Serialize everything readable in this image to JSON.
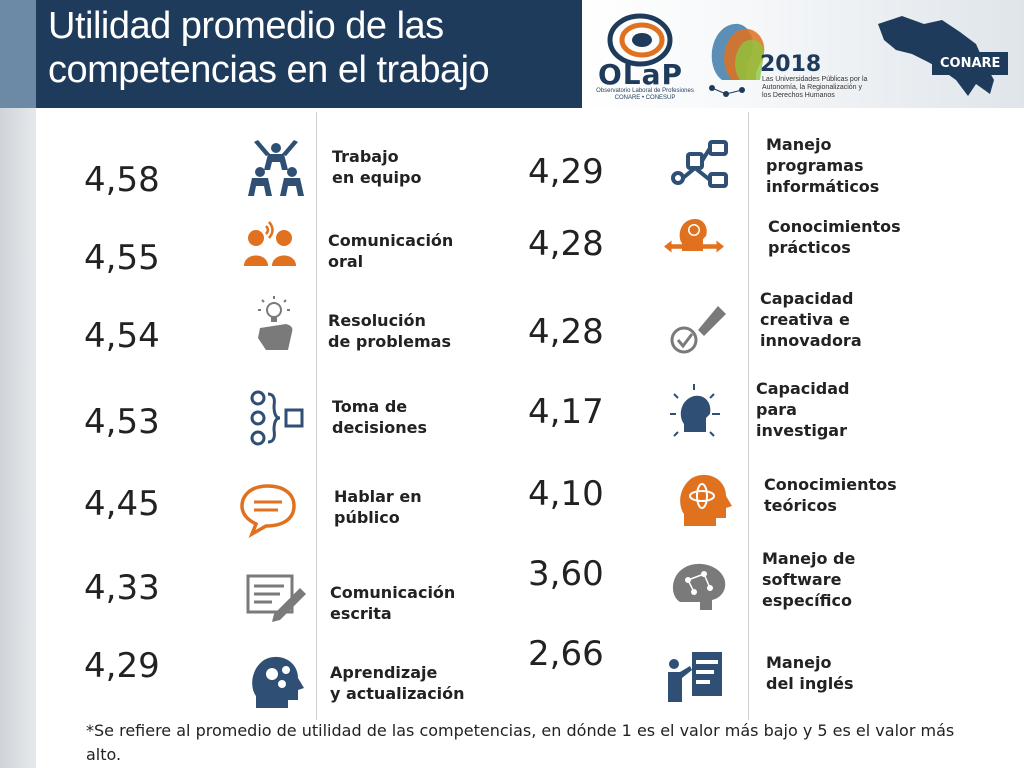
{
  "header": {
    "title_line1": "Utilidad promedio de las",
    "title_line2": "competencias en el trabajo"
  },
  "logos": {
    "olap_word": "OLaP",
    "olap_sub": "Observatorio Laboral de Profesiones",
    "olap_sub2": "CONARE • CONESUP",
    "year": "2018",
    "year_sub": "Las Universidades Públicas por la Autonomía, la Regionalización y los Derechos Humanos",
    "conare": "CONARE"
  },
  "competencias_izquierda": [
    {
      "valor": "4,58",
      "etiqueta": "Trabajo\nen equipo",
      "icono": "teamwork-icon"
    },
    {
      "valor": "4,55",
      "etiqueta": "Comunicación\noral",
      "icono": "oral-communication-icon"
    },
    {
      "valor": "4,54",
      "etiqueta": "Resolución\nde problemas",
      "icono": "lightbulb-hand-icon"
    },
    {
      "valor": "4,53",
      "etiqueta": "Toma de\ndecisiones",
      "icono": "decision-icon"
    },
    {
      "valor": "4,45",
      "etiqueta": "Hablar en\npúblico",
      "icono": "speech-bubble-icon"
    },
    {
      "valor": "4,33",
      "etiqueta": "Comunicación\nescrita",
      "icono": "writing-icon"
    },
    {
      "valor": "4,29",
      "etiqueta": "Aprendizaje\ny actualización",
      "icono": "head-gears-icon"
    }
  ],
  "competencias_derecha": [
    {
      "valor": "4,29",
      "etiqueta": "Manejo\nprogramas\ninformáticos",
      "icono": "flowchart-icon"
    },
    {
      "valor": "4,28",
      "etiqueta": "Conocimientos\nprácticos",
      "icono": "head-arrows-icon"
    },
    {
      "valor": "4,28",
      "etiqueta": "Capacidad\ncreativa e\ninnovadora",
      "icono": "creative-check-icon"
    },
    {
      "valor": "4,17",
      "etiqueta": "Capacidad\npara\ninvestigar",
      "icono": "head-research-icon"
    },
    {
      "valor": "4,10",
      "etiqueta": "Conocimientos\nteóricos",
      "icono": "head-atom-icon"
    },
    {
      "valor": "3,60",
      "etiqueta": "Manejo de\nsoftware\nespecífico",
      "icono": "brain-network-icon"
    },
    {
      "valor": "2,66",
      "etiqueta": "Manejo\ndel inglés",
      "icono": "presenter-icon"
    }
  ],
  "colors": {
    "navy": "#1f3b5c",
    "orange": "#e0711f",
    "icon_blue": "#2f4f74",
    "icon_gray": "#7a7a7a"
  },
  "footnote": "*Se refiere al promedio de utilidad de las competencias, en dónde 1 es el valor más bajo y 5 es el valor más alto."
}
